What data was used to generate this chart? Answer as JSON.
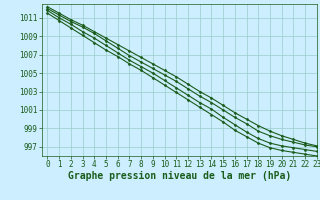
{
  "title": "Graphe pression niveau de la mer (hPa)",
  "background_color": "#cceeff",
  "plot_bg_color": "#cceeff",
  "grid_color": "#99cccc",
  "line_color": "#1a5c1a",
  "x_values": [
    0,
    1,
    2,
    3,
    4,
    5,
    6,
    7,
    8,
    9,
    10,
    11,
    12,
    13,
    14,
    15,
    16,
    17,
    18,
    19,
    20,
    21,
    22,
    23
  ],
  "series": [
    [
      1012.0,
      1011.3,
      1010.6,
      1010.0,
      1009.3,
      1008.5,
      1007.7,
      1006.9,
      1006.2,
      1005.5,
      1004.8,
      1004.1,
      1003.3,
      1002.5,
      1001.8,
      1001.0,
      1000.2,
      999.5,
      998.7,
      998.2,
      997.8,
      997.5,
      997.2,
      997.0
    ],
    [
      1011.8,
      1011.0,
      1010.3,
      1009.5,
      1008.8,
      1008.0,
      1007.2,
      1006.4,
      1005.7,
      1005.0,
      1004.2,
      1003.4,
      1002.6,
      1001.8,
      1001.1,
      1000.2,
      999.4,
      998.6,
      997.9,
      997.4,
      997.1,
      996.9,
      996.7,
      996.5
    ],
    [
      1012.2,
      1011.5,
      1010.8,
      1010.2,
      1009.5,
      1008.8,
      1008.1,
      1007.4,
      1006.7,
      1006.0,
      1005.3,
      1004.6,
      1003.8,
      1003.0,
      1002.3,
      1001.5,
      1000.7,
      1000.0,
      999.3,
      998.7,
      998.2,
      997.8,
      997.4,
      997.1
    ],
    [
      1011.5,
      1010.7,
      1009.9,
      1009.1,
      1008.3,
      1007.5,
      1006.8,
      1006.0,
      1005.3,
      1004.5,
      1003.7,
      1002.9,
      1002.1,
      1001.3,
      1000.5,
      999.7,
      998.8,
      998.1,
      997.4,
      996.9,
      996.6,
      996.4,
      996.2,
      996.0
    ]
  ],
  "ylim": [
    996.0,
    1012.5
  ],
  "xlim": [
    -0.5,
    23
  ],
  "yticks": [
    997,
    999,
    1001,
    1003,
    1005,
    1007,
    1009,
    1011
  ],
  "xticks": [
    0,
    1,
    2,
    3,
    4,
    5,
    6,
    7,
    8,
    9,
    10,
    11,
    12,
    13,
    14,
    15,
    16,
    17,
    18,
    19,
    20,
    21,
    22,
    23
  ],
  "title_fontsize": 7,
  "tick_fontsize": 5.5,
  "marker": "D",
  "marker_size": 1.5,
  "line_width": 0.8
}
